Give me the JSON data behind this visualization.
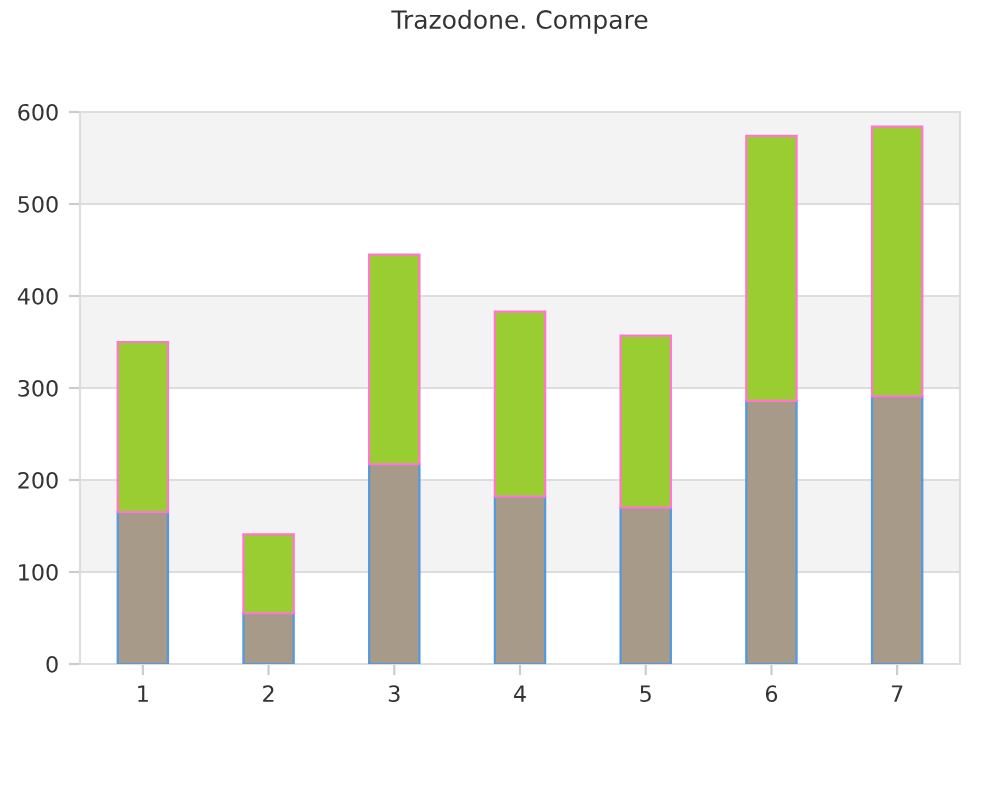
{
  "chart_data": {
    "type": "bar",
    "title": "Trazodone. Compare",
    "stacked": true,
    "categories": [
      "1",
      "2",
      "3",
      "4",
      "5",
      "6",
      "7"
    ],
    "series": [
      {
        "color": "#a89a88",
        "values": [
          165,
          55,
          217,
          182,
          170,
          286,
          291
        ]
      },
      {
        "color": "#9acd32",
        "values": [
          185,
          86,
          228,
          201,
          187,
          288,
          293
        ]
      }
    ],
    "ylim": [
      0,
      600
    ],
    "yticks": [
      0,
      100,
      200,
      300,
      400,
      500,
      600
    ],
    "grid": "y",
    "bands": [
      {
        "axis": "y",
        "from": 100,
        "to": 200,
        "color": "#f3f3f3"
      },
      {
        "axis": "y",
        "from": 300,
        "to": 400,
        "color": "#f3f3f3"
      },
      {
        "axis": "y",
        "from": 500,
        "to": 600,
        "color": "#f3f3f3"
      }
    ]
  }
}
